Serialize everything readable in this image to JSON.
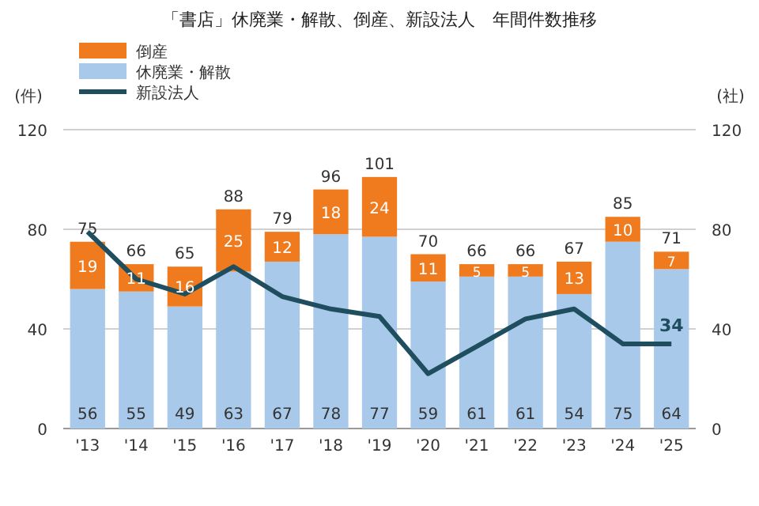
{
  "chart_data": {
    "type": "bar",
    "title": "「書店」休廃業・解散、倒産、新設法人　年間件数推移",
    "ylabel": "(件)",
    "y2label": "(社)",
    "categories": [
      "'13",
      "'14",
      "'15",
      "'16",
      "'17",
      "'18",
      "'19",
      "'20",
      "'21",
      "'22",
      "'23",
      "'24",
      "'25"
    ],
    "stacked": true,
    "ylim": [
      0,
      120
    ],
    "yticks": [
      0,
      40,
      80,
      120
    ],
    "y2lim": [
      0,
      120
    ],
    "y2ticks": [
      0,
      40,
      80,
      120
    ],
    "grid": "y",
    "legend": "top left",
    "series": [
      {
        "name": "休廃業・解散",
        "color": "#a9c9ea",
        "values": [
          56,
          55,
          49,
          63,
          67,
          78,
          77,
          59,
          61,
          61,
          54,
          75,
          64
        ],
        "value_labels": [
          "56",
          "55",
          "49",
          "63",
          "67",
          "78",
          "77",
          "59",
          "61",
          "61",
          "54",
          "75",
          "64"
        ]
      },
      {
        "name": "倒産",
        "color": "#f07b1f",
        "values": [
          19,
          11,
          16,
          25,
          12,
          18,
          24,
          11,
          5,
          5,
          13,
          10,
          7
        ],
        "value_labels": [
          "19",
          "11",
          "16",
          "25",
          "12",
          "18",
          "24",
          "11",
          "5",
          "5",
          "13",
          "10",
          "7"
        ]
      },
      {
        "name": "新設法人",
        "type": "line",
        "axis": "y2",
        "color": "#1f4e5f",
        "values": [
          79,
          60,
          54,
          65,
          53,
          48,
          45,
          22,
          33,
          44,
          48,
          34,
          34
        ],
        "value_labels": [
          null,
          null,
          null,
          null,
          null,
          null,
          null,
          null,
          null,
          null,
          null,
          null,
          "34"
        ]
      }
    ],
    "totals": [
      "75",
      "66",
      "65",
      "88",
      "79",
      "96",
      "101",
      "70",
      "66",
      "66",
      "67",
      "85",
      "71"
    ]
  }
}
